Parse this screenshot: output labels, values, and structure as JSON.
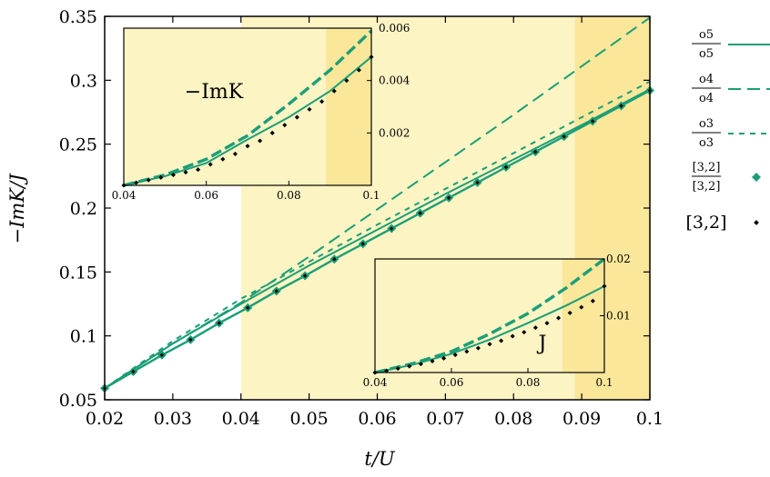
{
  "chart_data": {
    "type": "line",
    "xlabel": "t/U",
    "ylabel": "−ImK/J",
    "xlim": [
      0.02,
      0.1
    ],
    "ylim": [
      0.05,
      0.35
    ],
    "xticks": [
      "0.02",
      "0.03",
      "0.04",
      "0.05",
      "0.06",
      "0.07",
      "0.08",
      "0.09",
      "0.1"
    ],
    "yticks": [
      "0.05",
      "0.1",
      "0.15",
      "0.2",
      "0.25",
      "0.3",
      "0.35"
    ],
    "shaded_regions": [
      {
        "x": [
          0.04,
          0.1
        ],
        "color": "#fdf4c4"
      },
      {
        "x": [
          0.089,
          0.1
        ],
        "color": "#fbe79a"
      }
    ],
    "series": [
      {
        "name_num": "o5",
        "name_den": "o5",
        "style": "solid",
        "color": "#1b9e77",
        "x": [
          0.02,
          0.03,
          0.04,
          0.05,
          0.06,
          0.07,
          0.08,
          0.09,
          0.1
        ],
        "y": [
          0.059,
          0.094,
          0.125,
          0.155,
          0.183,
          0.211,
          0.238,
          0.265,
          0.293
        ]
      },
      {
        "name_num": "o4",
        "name_den": "o4",
        "style": "long-dash",
        "color": "#1b9e77",
        "x": [
          0.02,
          0.03,
          0.04,
          0.05,
          0.06,
          0.07,
          0.08,
          0.09,
          0.1
        ],
        "y": [
          0.059,
          0.094,
          0.126,
          0.162,
          0.199,
          0.236,
          0.273,
          0.311,
          0.349
        ]
      },
      {
        "name_num": "o3",
        "name_den": "o3",
        "style": "short-dash",
        "color": "#1b9e77",
        "x": [
          0.02,
          0.03,
          0.04,
          0.05,
          0.06,
          0.07,
          0.08,
          0.09,
          0.1
        ],
        "y": [
          0.059,
          0.096,
          0.129,
          0.158,
          0.187,
          0.215,
          0.243,
          0.271,
          0.299
        ]
      },
      {
        "name_num": "[3,2]",
        "name_den": "[3,2]",
        "style": "diamond",
        "color": "#1b9e77",
        "x": [
          0.02,
          0.0242,
          0.0284,
          0.0326,
          0.0368,
          0.041,
          0.0452,
          0.0494,
          0.0537,
          0.0579,
          0.0621,
          0.0663,
          0.0705,
          0.0747,
          0.0789,
          0.0832,
          0.0874,
          0.0916,
          0.0958,
          0.1
        ],
        "y": [
          0.059,
          0.072,
          0.085,
          0.097,
          0.11,
          0.122,
          0.135,
          0.147,
          0.16,
          0.172,
          0.184,
          0.196,
          0.208,
          0.22,
          0.232,
          0.244,
          0.256,
          0.268,
          0.28,
          0.292
        ]
      },
      {
        "name": "[3,2]",
        "style": "dot",
        "color": "#000000"
      }
    ],
    "insets": [
      {
        "label": "−ImK",
        "xlim": [
          0.04,
          0.1
        ],
        "ylim": [
          0,
          0.006
        ],
        "xticks": [
          "0.04",
          "0.06",
          "0.08",
          "0.1"
        ],
        "yticks": [
          "0.002",
          "0.004",
          "0.006"
        ],
        "shade_dark_from": 0.089,
        "solid_x": [
          0.04,
          0.05,
          0.06,
          0.07,
          0.08,
          0.09,
          0.1
        ],
        "solid_y": [
          0.0,
          0.00035,
          0.00085,
          0.00175,
          0.0026,
          0.0036,
          0.0049
        ],
        "dash_x": [
          0.04,
          0.05,
          0.06,
          0.07,
          0.08,
          0.09,
          0.1
        ],
        "dash_y": [
          0.0,
          0.0004,
          0.001,
          0.0019,
          0.0031,
          0.0044,
          0.0059
        ],
        "dots_x": [
          0.04,
          0.043,
          0.046,
          0.049,
          0.052,
          0.055,
          0.058,
          0.061,
          0.064,
          0.067,
          0.07,
          0.073,
          0.076,
          0.079,
          0.082,
          0.085,
          0.088,
          0.091,
          0.094,
          0.097,
          0.1
        ],
        "dots_y": [
          0.0,
          0.0001,
          0.0002,
          0.0003,
          0.0004,
          0.0005,
          0.0006,
          0.0008,
          0.001,
          0.0012,
          0.0015,
          0.0017,
          0.002,
          0.0023,
          0.0026,
          0.0029,
          0.0032,
          0.0036,
          0.004,
          0.0044,
          0.0049
        ]
      },
      {
        "label": "J",
        "xlim": [
          0.04,
          0.1
        ],
        "ylim": [
          0,
          0.02
        ],
        "xticks": [
          "0.04",
          "0.06",
          "0.08",
          "0.1"
        ],
        "yticks": [
          "0.01",
          "0.02"
        ],
        "shade_dark_from": 0.089,
        "solid_x": [
          0.04,
          0.05,
          0.06,
          0.07,
          0.08,
          0.09,
          0.1
        ],
        "solid_y": [
          0.0,
          0.0014,
          0.0033,
          0.0058,
          0.0087,
          0.0118,
          0.0152
        ],
        "dash_x": [
          0.04,
          0.05,
          0.06,
          0.07,
          0.08,
          0.09,
          0.1
        ],
        "dash_y": [
          0.0,
          0.0016,
          0.0037,
          0.0068,
          0.0104,
          0.0149,
          0.02
        ],
        "dots_x": [
          0.04,
          0.043,
          0.046,
          0.049,
          0.052,
          0.055,
          0.058,
          0.061,
          0.064,
          0.067,
          0.07,
          0.073,
          0.076,
          0.079,
          0.082,
          0.085,
          0.088,
          0.091,
          0.094,
          0.097,
          0.1
        ],
        "dots_y": [
          0.0,
          0.0003,
          0.0007,
          0.0011,
          0.0015,
          0.002,
          0.0025,
          0.0031,
          0.0037,
          0.0043,
          0.005,
          0.0056,
          0.0064,
          0.0071,
          0.0079,
          0.0087,
          0.0096,
          0.0105,
          0.0115,
          0.0126,
          0.0152
        ]
      }
    ]
  }
}
